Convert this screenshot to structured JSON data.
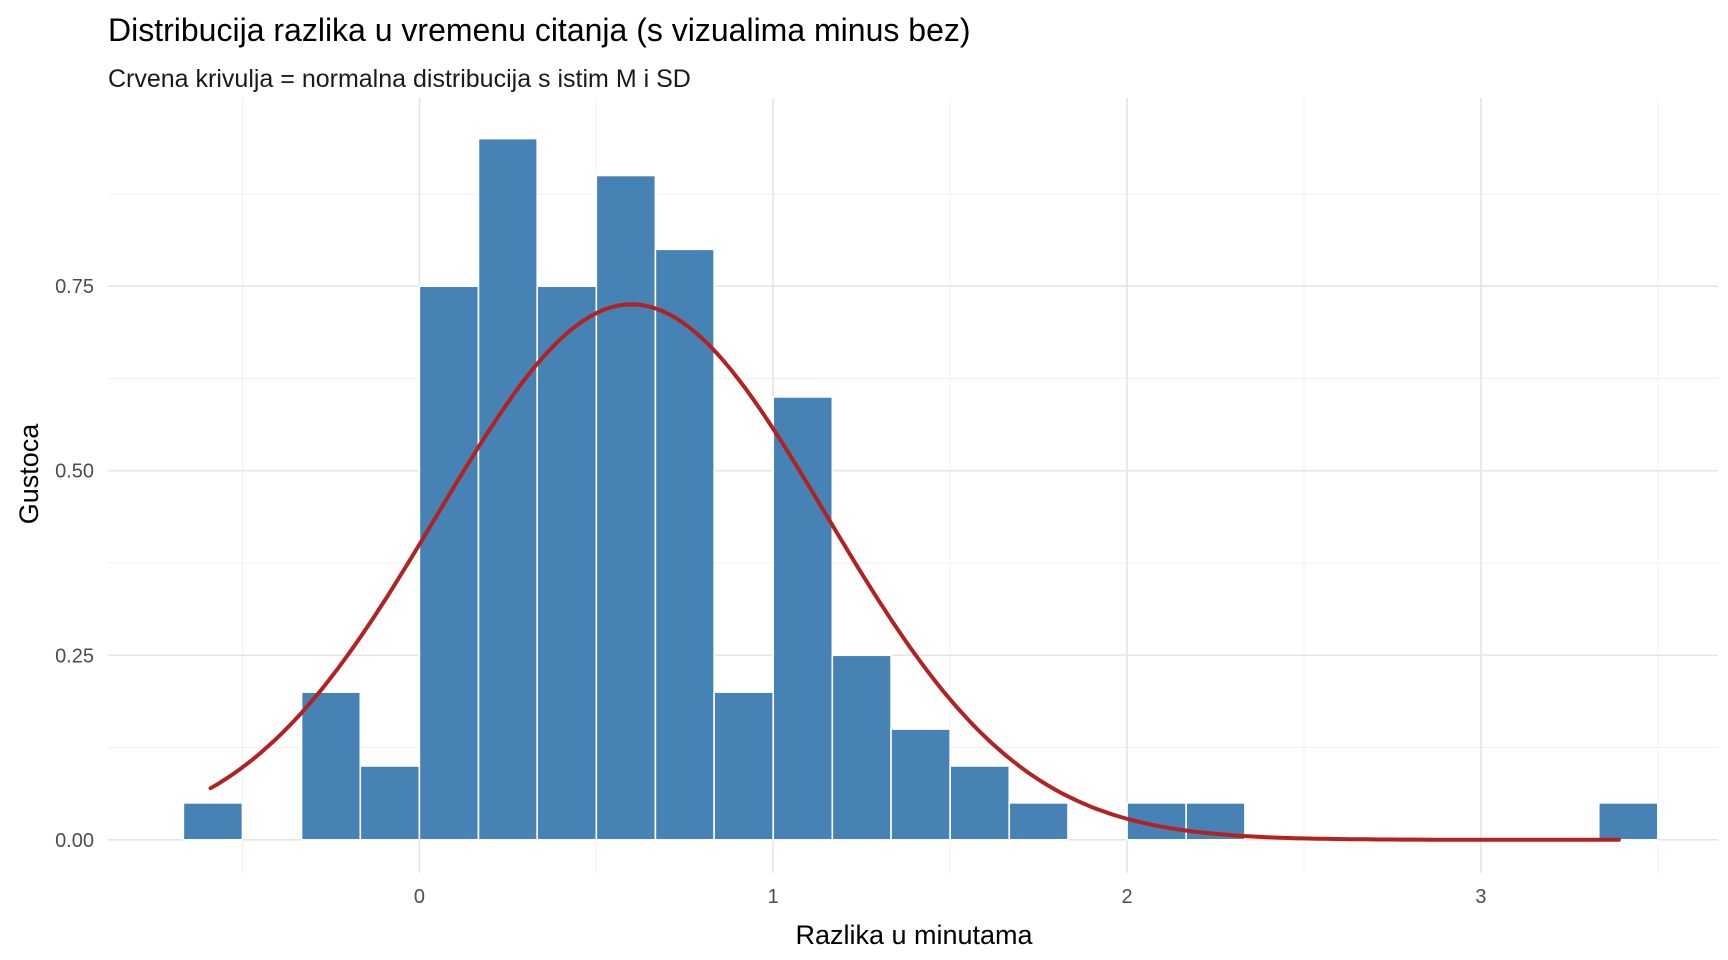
{
  "chart_data": {
    "type": "bar",
    "title": "Distribucija razlika u vremenu citanja (s vizualima minus bez)",
    "subtitle": "Crvena krivulja = normalna distribucija s istim M i SD",
    "xlabel": "Razlika u minutama",
    "ylabel": "Gustoca",
    "xlim": [
      -0.88,
      3.67
    ],
    "ylim": [
      -0.045,
      1.005
    ],
    "x_ticks": [
      0,
      1,
      2,
      3
    ],
    "y_ticks": [
      0,
      0.25,
      0.5,
      0.75
    ],
    "x_tick_labels": [
      "0",
      "1",
      "2",
      "3"
    ],
    "y_tick_labels": [
      "0.00",
      "0.25",
      "0.50",
      "0.75"
    ],
    "grid": true,
    "bar_color": "#4682b4",
    "bar_outline": "#ffffff",
    "histogram": {
      "bin_width": 0.1667,
      "bins": [
        {
          "x_start": -0.667,
          "x_end": -0.5,
          "density": 0.05
        },
        {
          "x_start": -0.333,
          "x_end": -0.167,
          "density": 0.2
        },
        {
          "x_start": -0.167,
          "x_end": 0.0,
          "density": 0.1
        },
        {
          "x_start": 0.0,
          "x_end": 0.167,
          "density": 0.75
        },
        {
          "x_start": 0.167,
          "x_end": 0.333,
          "density": 0.95
        },
        {
          "x_start": 0.333,
          "x_end": 0.5,
          "density": 0.75
        },
        {
          "x_start": 0.5,
          "x_end": 0.667,
          "density": 0.9
        },
        {
          "x_start": 0.667,
          "x_end": 0.833,
          "density": 0.8
        },
        {
          "x_start": 0.833,
          "x_end": 1.0,
          "density": 0.2
        },
        {
          "x_start": 1.0,
          "x_end": 1.167,
          "density": 0.6
        },
        {
          "x_start": 1.167,
          "x_end": 1.333,
          "density": 0.25
        },
        {
          "x_start": 1.333,
          "x_end": 1.5,
          "density": 0.15
        },
        {
          "x_start": 1.5,
          "x_end": 1.667,
          "density": 0.1
        },
        {
          "x_start": 1.667,
          "x_end": 1.833,
          "density": 0.05
        },
        {
          "x_start": 2.0,
          "x_end": 2.167,
          "density": 0.05
        },
        {
          "x_start": 2.167,
          "x_end": 2.333,
          "density": 0.05
        },
        {
          "x_start": 3.333,
          "x_end": 3.5,
          "density": 0.05
        }
      ]
    },
    "normal_curve": {
      "mean": 0.6,
      "sd": 0.55,
      "x_range": [
        -0.59,
        3.39
      ],
      "color": "#b22222"
    }
  }
}
